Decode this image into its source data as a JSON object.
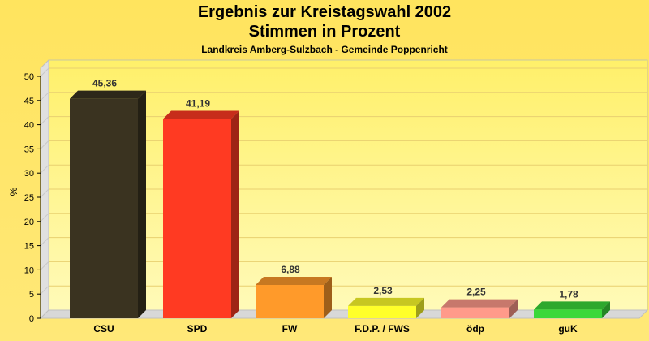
{
  "chart_data": {
    "type": "bar",
    "title": "Ergebnis zur Kreistagswahl 2002",
    "subtitle_line": "Stimmen in Prozent",
    "subtitle": "Landkreis Amberg-Sulzbach - Gemeinde Poppenricht",
    "xlabel": "",
    "ylabel": "%",
    "ylim": [
      0,
      52
    ],
    "yticks": [
      0,
      5,
      10,
      15,
      20,
      25,
      30,
      35,
      40,
      45,
      50
    ],
    "grid": true,
    "categories": [
      "CSU",
      "SPD",
      "FW",
      "F.D.P. / FWS",
      "ödp",
      "guK"
    ],
    "values": [
      45.36,
      41.19,
      6.88,
      2.53,
      2.25,
      1.78
    ],
    "value_labels": [
      "45,36",
      "41,19",
      "6,88",
      "2,53",
      "2,25",
      "1,78"
    ],
    "colors": [
      "#3a3320",
      "#ff3a22",
      "#ff9a2a",
      "#ffff2a",
      "#ff9a8a",
      "#3ad83a"
    ]
  }
}
